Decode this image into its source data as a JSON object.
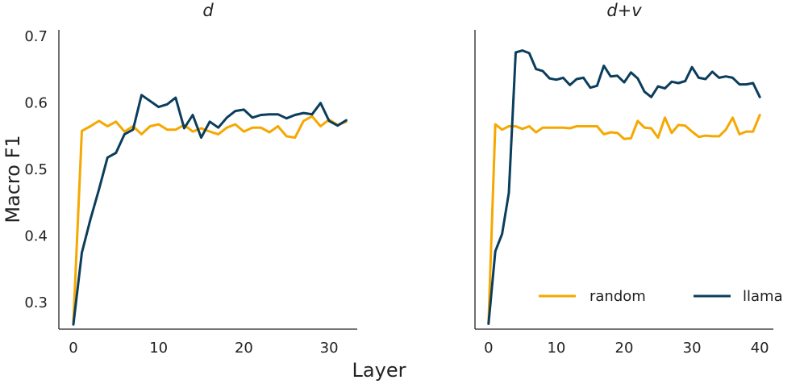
{
  "chart_data": {
    "type": "line",
    "ylabel": "Macro F1",
    "xlabel": "Layer",
    "ylim": [
      0.26,
      0.71
    ],
    "yticks": [
      "0.3",
      "0.4",
      "0.5",
      "0.6",
      "0.7"
    ],
    "grid": false,
    "legend": {
      "placement": "lower-right of right panel",
      "entries": [
        "random",
        "llama"
      ]
    },
    "colors": {
      "random": "#f5a800",
      "llama": "#0b3d5c"
    },
    "panels": [
      {
        "title": "d",
        "xlim": [
          -1.7,
          33.3
        ],
        "xticks": [
          "0",
          "10",
          "20",
          "30"
        ],
        "series": [
          {
            "name": "random",
            "x": [
              0,
              1,
              2,
              3,
              4,
              5,
              6,
              7,
              8,
              9,
              10,
              11,
              12,
              13,
              14,
              15,
              16,
              17,
              18,
              19,
              20,
              21,
              22,
              23,
              24,
              25,
              26,
              27,
              28,
              29,
              30,
              31,
              32
            ],
            "values": [
              0.27,
              0.558,
              0.565,
              0.573,
              0.565,
              0.572,
              0.557,
              0.565,
              0.553,
              0.565,
              0.568,
              0.56,
              0.56,
              0.567,
              0.557,
              0.562,
              0.557,
              0.553,
              0.563,
              0.568,
              0.557,
              0.563,
              0.563,
              0.556,
              0.565,
              0.55,
              0.548,
              0.573,
              0.58,
              0.565,
              0.575,
              0.567,
              0.572
            ]
          },
          {
            "name": "llama",
            "x": [
              0,
              1,
              2,
              3,
              4,
              5,
              6,
              7,
              8,
              9,
              10,
              11,
              12,
              13,
              14,
              15,
              16,
              17,
              18,
              19,
              20,
              21,
              22,
              23,
              24,
              25,
              26,
              27,
              28,
              29,
              30,
              31,
              32
            ],
            "values": [
              0.267,
              0.375,
              0.425,
              0.47,
              0.518,
              0.525,
              0.553,
              0.56,
              0.612,
              0.603,
              0.594,
              0.598,
              0.608,
              0.562,
              0.582,
              0.548,
              0.572,
              0.563,
              0.578,
              0.588,
              0.59,
              0.578,
              0.582,
              0.583,
              0.583,
              0.577,
              0.582,
              0.585,
              0.583,
              0.6,
              0.573,
              0.566,
              0.574
            ]
          }
        ]
      },
      {
        "title": "d+v",
        "xlim": [
          -2.0,
          42.0
        ],
        "xticks": [
          "0",
          "10",
          "20",
          "30",
          "40"
        ],
        "series": [
          {
            "name": "random",
            "x": [
              0,
              1,
              2,
              3,
              4,
              5,
              6,
              7,
              8,
              9,
              10,
              11,
              12,
              13,
              14,
              15,
              16,
              17,
              18,
              19,
              20,
              21,
              22,
              23,
              24,
              25,
              26,
              27,
              28,
              29,
              30,
              31,
              32,
              33,
              34,
              35,
              36,
              37,
              38,
              39,
              40
            ],
            "values": [
              0.27,
              0.568,
              0.56,
              0.565,
              0.565,
              0.561,
              0.565,
              0.556,
              0.563,
              0.563,
              0.563,
              0.563,
              0.562,
              0.565,
              0.565,
              0.565,
              0.565,
              0.553,
              0.556,
              0.555,
              0.546,
              0.547,
              0.573,
              0.563,
              0.562,
              0.548,
              0.578,
              0.555,
              0.567,
              0.566,
              0.557,
              0.549,
              0.551,
              0.55,
              0.55,
              0.56,
              0.578,
              0.553,
              0.557,
              0.557,
              0.582
            ]
          },
          {
            "name": "llama",
            "x": [
              0,
              1,
              2,
              3,
              4,
              5,
              6,
              7,
              8,
              9,
              10,
              11,
              12,
              13,
              14,
              15,
              16,
              17,
              18,
              19,
              20,
              21,
              22,
              23,
              24,
              25,
              26,
              27,
              28,
              29,
              30,
              31,
              32,
              33,
              34,
              35,
              36,
              37,
              38,
              39,
              40
            ],
            "values": [
              0.268,
              0.377,
              0.403,
              0.465,
              0.676,
              0.679,
              0.675,
              0.651,
              0.648,
              0.637,
              0.635,
              0.638,
              0.627,
              0.636,
              0.638,
              0.623,
              0.626,
              0.656,
              0.64,
              0.641,
              0.631,
              0.646,
              0.637,
              0.617,
              0.609,
              0.625,
              0.622,
              0.632,
              0.63,
              0.633,
              0.654,
              0.638,
              0.636,
              0.647,
              0.638,
              0.64,
              0.638,
              0.628,
              0.628,
              0.63,
              0.609
            ]
          }
        ]
      }
    ]
  }
}
